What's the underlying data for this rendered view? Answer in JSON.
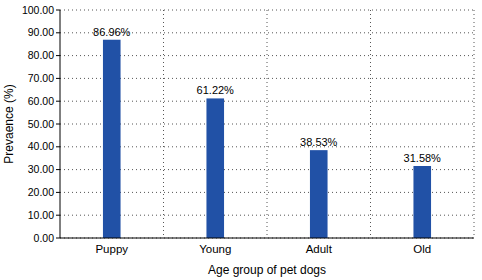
{
  "chart_data": {
    "type": "bar",
    "x_label": "Age group of pet dogs",
    "y_label": "Prevaence (%)",
    "categories": [
      "Puppy",
      "Young",
      "Adult",
      "Old"
    ],
    "values": [
      86.96,
      61.22,
      38.53,
      31.58
    ],
    "value_labels": [
      "86.96%",
      "61.22%",
      "38.53%",
      "31.58%"
    ],
    "color": "#2151a6",
    "ylim": [
      0,
      100
    ],
    "yticks": [
      {
        "value": 0,
        "label": "0.00"
      },
      {
        "value": 10,
        "label": "10.00"
      },
      {
        "value": 20,
        "label": "20.00"
      },
      {
        "value": 30,
        "label": "30.00"
      },
      {
        "value": 40,
        "label": "40.00"
      },
      {
        "value": 50,
        "label": "50.00"
      },
      {
        "value": 60,
        "label": "60.00"
      },
      {
        "value": 70,
        "label": "70.00"
      },
      {
        "value": 80,
        "label": "80.00"
      },
      {
        "value": 90,
        "label": "90.00"
      },
      {
        "value": 100,
        "label": "100.00"
      }
    ],
    "grid": true,
    "data_labels": true
  }
}
